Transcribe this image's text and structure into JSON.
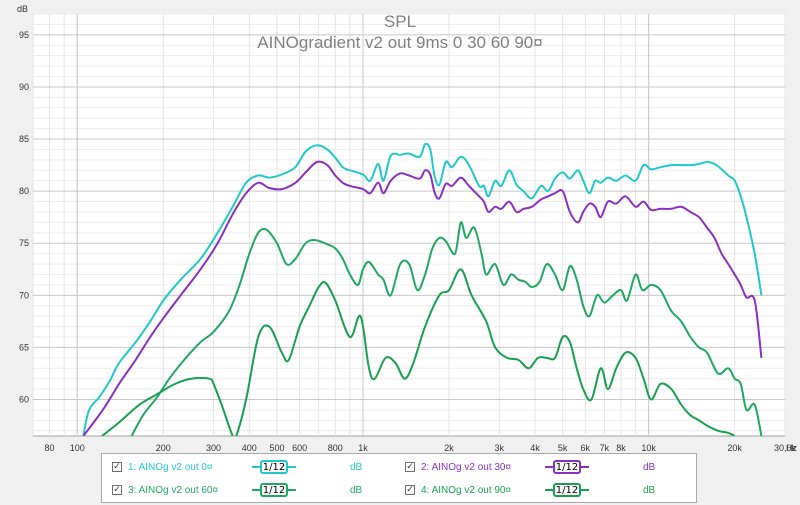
{
  "chart_data": {
    "type": "line",
    "title": "SPL",
    "subtitle": "AINOgradient v2 out 9ms 0 30 60 90¤",
    "ylabel": "dB",
    "xlabel": "",
    "x_unit": "Hz",
    "x_scale": "log",
    "xlim": [
      70,
      30000
    ],
    "ylim": [
      56.5,
      97
    ],
    "grid": true,
    "y_ticks": [
      60,
      65,
      70,
      75,
      80,
      85,
      90,
      95
    ],
    "y_tick_labels": [
      "60",
      "65",
      "70",
      "75",
      "80",
      "85",
      "90",
      "95"
    ],
    "x_ticks": [
      80,
      100,
      200,
      300,
      400,
      500,
      600,
      800,
      1000,
      2000,
      3000,
      4000,
      5000,
      6000,
      7000,
      8000,
      10000,
      20000,
      30000
    ],
    "x_tick_labels": [
      "80",
      "100",
      "200",
      "300",
      "400",
      "500",
      "600",
      "800",
      "1k",
      "2k",
      "3k",
      "4k",
      "5k",
      "6k",
      "7k",
      "8k",
      "10k",
      "20k",
      "30,0k"
    ],
    "series": [
      {
        "name": "1: AINOg v2 out 0¤",
        "color": "#20c8c8",
        "unit": "dB",
        "checked": true,
        "points": [
          [
            105,
            56.5
          ],
          [
            110,
            59.0
          ],
          [
            120,
            60.3
          ],
          [
            130,
            61.8
          ],
          [
            140,
            63.5
          ],
          [
            160,
            65.5
          ],
          [
            180,
            67.5
          ],
          [
            200,
            69.5
          ],
          [
            230,
            71.5
          ],
          [
            270,
            73.5
          ],
          [
            310,
            76.0
          ],
          [
            350,
            78.5
          ],
          [
            390,
            80.8
          ],
          [
            430,
            81.5
          ],
          [
            470,
            81.3
          ],
          [
            520,
            81.6
          ],
          [
            580,
            82.3
          ],
          [
            630,
            83.8
          ],
          [
            690,
            84.4
          ],
          [
            750,
            84.0
          ],
          [
            800,
            83.2
          ],
          [
            850,
            82.3
          ],
          [
            900,
            82.0
          ],
          [
            1000,
            81.6
          ],
          [
            1060,
            81.0
          ],
          [
            1130,
            82.6
          ],
          [
            1180,
            81.0
          ],
          [
            1250,
            83.4
          ],
          [
            1350,
            83.5
          ],
          [
            1450,
            83.6
          ],
          [
            1580,
            83.3
          ],
          [
            1650,
            84.5
          ],
          [
            1720,
            84.0
          ],
          [
            1780,
            81.5
          ],
          [
            1850,
            80.6
          ],
          [
            1950,
            82.8
          ],
          [
            2050,
            82.3
          ],
          [
            2200,
            83.3
          ],
          [
            2350,
            82.5
          ],
          [
            2550,
            80.5
          ],
          [
            2650,
            80.5
          ],
          [
            2750,
            79.5
          ],
          [
            2900,
            81.0
          ],
          [
            3050,
            80.5
          ],
          [
            3250,
            82.0
          ],
          [
            3450,
            80.6
          ],
          [
            3650,
            80.0
          ],
          [
            3900,
            79.3
          ],
          [
            4200,
            80.5
          ],
          [
            4450,
            80.0
          ],
          [
            4700,
            81.2
          ],
          [
            5000,
            81.8
          ],
          [
            5300,
            81.2
          ],
          [
            5650,
            82.0
          ],
          [
            5900,
            81.0
          ],
          [
            6200,
            79.8
          ],
          [
            6500,
            81.0
          ],
          [
            6800,
            80.8
          ],
          [
            7200,
            81.3
          ],
          [
            7700,
            81.0
          ],
          [
            8300,
            81.5
          ],
          [
            9000,
            81.0
          ],
          [
            9600,
            82.5
          ],
          [
            10200,
            82.1
          ],
          [
            11000,
            82.3
          ],
          [
            12000,
            82.5
          ],
          [
            13000,
            82.5
          ],
          [
            14000,
            82.5
          ],
          [
            15000,
            82.6
          ],
          [
            16000,
            82.8
          ],
          [
            17000,
            82.6
          ],
          [
            18000,
            82.1
          ],
          [
            19000,
            81.5
          ],
          [
            20000,
            81.0
          ],
          [
            21000,
            79.5
          ],
          [
            22000,
            77.5
          ],
          [
            23500,
            74.0
          ],
          [
            24800,
            70.0
          ]
        ]
      },
      {
        "name": "2: AINOg v2 out 30¤",
        "color": "#8a30c0",
        "unit": "dB",
        "checked": true,
        "points": [
          [
            105,
            56.5
          ],
          [
            112,
            57.5
          ],
          [
            125,
            59.3
          ],
          [
            140,
            61.5
          ],
          [
            160,
            63.8
          ],
          [
            180,
            66.0
          ],
          [
            200,
            67.8
          ],
          [
            230,
            70.0
          ],
          [
            270,
            72.5
          ],
          [
            310,
            75.0
          ],
          [
            350,
            77.8
          ],
          [
            390,
            79.8
          ],
          [
            430,
            80.8
          ],
          [
            470,
            80.3
          ],
          [
            520,
            80.2
          ],
          [
            580,
            80.8
          ],
          [
            630,
            81.8
          ],
          [
            690,
            82.8
          ],
          [
            750,
            82.5
          ],
          [
            800,
            81.5
          ],
          [
            850,
            80.8
          ],
          [
            900,
            80.5
          ],
          [
            1000,
            80.2
          ],
          [
            1060,
            79.8
          ],
          [
            1130,
            80.8
          ],
          [
            1180,
            79.8
          ],
          [
            1250,
            81.0
          ],
          [
            1350,
            81.7
          ],
          [
            1450,
            81.5
          ],
          [
            1580,
            81.2
          ],
          [
            1650,
            82.0
          ],
          [
            1720,
            81.6
          ],
          [
            1780,
            79.9
          ],
          [
            1850,
            79.3
          ],
          [
            1950,
            80.7
          ],
          [
            2050,
            80.5
          ],
          [
            2200,
            81.3
          ],
          [
            2350,
            80.5
          ],
          [
            2550,
            79.5
          ],
          [
            2650,
            79.0
          ],
          [
            2750,
            78.0
          ],
          [
            2900,
            78.5
          ],
          [
            3050,
            78.3
          ],
          [
            3250,
            79.0
          ],
          [
            3450,
            78.0
          ],
          [
            3650,
            78.3
          ],
          [
            3900,
            78.5
          ],
          [
            4200,
            79.2
          ],
          [
            4450,
            79.5
          ],
          [
            4700,
            79.8
          ],
          [
            5000,
            80.0
          ],
          [
            5300,
            78.0
          ],
          [
            5650,
            77.0
          ],
          [
            5900,
            78.0
          ],
          [
            6200,
            78.8
          ],
          [
            6500,
            78.5
          ],
          [
            6800,
            77.5
          ],
          [
            7200,
            79.0
          ],
          [
            7700,
            78.8
          ],
          [
            8300,
            79.5
          ],
          [
            9000,
            78.5
          ],
          [
            9600,
            79.0
          ],
          [
            10200,
            78.2
          ],
          [
            11000,
            78.3
          ],
          [
            12000,
            78.3
          ],
          [
            13000,
            78.5
          ],
          [
            14000,
            78.0
          ],
          [
            15000,
            77.5
          ],
          [
            16000,
            76.5
          ],
          [
            17000,
            75.5
          ],
          [
            18000,
            74.0
          ],
          [
            19000,
            73.0
          ],
          [
            20000,
            72.0
          ],
          [
            21000,
            71.0
          ],
          [
            22000,
            69.8
          ],
          [
            23500,
            69.5
          ],
          [
            24800,
            64.0
          ]
        ]
      },
      {
        "name": "3: AINOg v2 out 60¤",
        "color": "#1fa862",
        "unit": "dB",
        "checked": true,
        "points": [
          [
            155,
            56.5
          ],
          [
            170,
            58.5
          ],
          [
            190,
            60.2
          ],
          [
            210,
            62.0
          ],
          [
            240,
            64.0
          ],
          [
            270,
            65.5
          ],
          [
            300,
            66.5
          ],
          [
            340,
            68.5
          ],
          [
            370,
            71.0
          ],
          [
            400,
            74.0
          ],
          [
            430,
            76.0
          ],
          [
            460,
            76.3
          ],
          [
            500,
            75.0
          ],
          [
            540,
            73.0
          ],
          [
            580,
            73.5
          ],
          [
            630,
            75.0
          ],
          [
            680,
            75.3
          ],
          [
            750,
            74.9
          ],
          [
            800,
            74.5
          ],
          [
            850,
            73.5
          ],
          [
            900,
            72.0
          ],
          [
            960,
            71.0
          ],
          [
            1000,
            72.5
          ],
          [
            1050,
            73.2
          ],
          [
            1130,
            72.0
          ],
          [
            1180,
            71.5
          ],
          [
            1250,
            70.0
          ],
          [
            1350,
            73.0
          ],
          [
            1450,
            73.0
          ],
          [
            1550,
            70.5
          ],
          [
            1650,
            72.0
          ],
          [
            1750,
            74.5
          ],
          [
            1850,
            75.5
          ],
          [
            1950,
            75.2
          ],
          [
            2100,
            74.0
          ],
          [
            2200,
            77.0
          ],
          [
            2300,
            75.5
          ],
          [
            2450,
            76.5
          ],
          [
            2600,
            74.0
          ],
          [
            2700,
            72.0
          ],
          [
            2900,
            73.0
          ],
          [
            3100,
            71.0
          ],
          [
            3300,
            72.0
          ],
          [
            3500,
            71.5
          ],
          [
            3700,
            71.3
          ],
          [
            3900,
            70.8
          ],
          [
            4150,
            71.3
          ],
          [
            4400,
            73.0
          ],
          [
            4700,
            72.0
          ],
          [
            5000,
            70.5
          ],
          [
            5300,
            72.8
          ],
          [
            5600,
            71.5
          ],
          [
            5900,
            69.0
          ],
          [
            6200,
            68.0
          ],
          [
            6600,
            70.0
          ],
          [
            7000,
            69.3
          ],
          [
            7500,
            70.0
          ],
          [
            8000,
            70.5
          ],
          [
            8400,
            69.5
          ],
          [
            9000,
            72.0
          ],
          [
            9500,
            70.5
          ],
          [
            10200,
            71.0
          ],
          [
            11000,
            70.5
          ],
          [
            12000,
            68.5
          ],
          [
            13000,
            67.5
          ],
          [
            14000,
            66.0
          ],
          [
            15000,
            65.0
          ],
          [
            16000,
            64.5
          ],
          [
            17500,
            62.5
          ],
          [
            19000,
            63.0
          ],
          [
            20000,
            62.0
          ],
          [
            21000,
            61.5
          ],
          [
            22000,
            59.0
          ],
          [
            23500,
            59.5
          ],
          [
            24800,
            56.5
          ]
        ]
      },
      {
        "name": "4: AINOg v2 out 90¤",
        "color": "#18a050",
        "unit": "dB",
        "checked": true,
        "points": [
          [
            122,
            56.5
          ],
          [
            140,
            57.8
          ],
          [
            165,
            59.5
          ],
          [
            190,
            60.5
          ],
          [
            220,
            61.5
          ],
          [
            250,
            62.0
          ],
          [
            290,
            62.0
          ],
          [
            300,
            61.5
          ],
          [
            320,
            59.5
          ],
          [
            350,
            56.5
          ],
          [
            360,
            56.5
          ],
          [
            390,
            60.0
          ],
          [
            430,
            66.0
          ],
          [
            470,
            67.0
          ],
          [
            520,
            64.5
          ],
          [
            550,
            63.8
          ],
          [
            600,
            67.0
          ],
          [
            650,
            69.0
          ],
          [
            700,
            70.8
          ],
          [
            740,
            71.2
          ],
          [
            800,
            69.5
          ],
          [
            900,
            66.0
          ],
          [
            980,
            68.0
          ],
          [
            1050,
            63.0
          ],
          [
            1100,
            62.0
          ],
          [
            1200,
            64.0
          ],
          [
            1300,
            63.5
          ],
          [
            1400,
            62.0
          ],
          [
            1500,
            63.5
          ],
          [
            1650,
            67.0
          ],
          [
            1850,
            70.0
          ],
          [
            2000,
            70.5
          ],
          [
            2200,
            72.5
          ],
          [
            2400,
            70.0
          ],
          [
            2700,
            67.5
          ],
          [
            2900,
            65.0
          ],
          [
            3200,
            64.0
          ],
          [
            3500,
            63.8
          ],
          [
            3800,
            63.0
          ],
          [
            4100,
            64.0
          ],
          [
            4400,
            64.0
          ],
          [
            4700,
            64.0
          ],
          [
            5000,
            66.0
          ],
          [
            5300,
            65.5
          ],
          [
            5600,
            63.0
          ],
          [
            5900,
            61.0
          ],
          [
            6300,
            60.0
          ],
          [
            6800,
            63.0
          ],
          [
            7200,
            61.0
          ],
          [
            7700,
            63.0
          ],
          [
            8300,
            64.5
          ],
          [
            9000,
            64.0
          ],
          [
            9600,
            62.0
          ],
          [
            10200,
            60.0
          ],
          [
            11000,
            61.5
          ],
          [
            12000,
            61.0
          ],
          [
            13000,
            59.5
          ],
          [
            14000,
            58.5
          ],
          [
            15000,
            58.0
          ],
          [
            16000,
            57.5
          ],
          [
            17500,
            57.0
          ],
          [
            19000,
            56.8
          ],
          [
            20000,
            56.5
          ]
        ]
      }
    ]
  },
  "legend": {
    "items": [
      {
        "label": "1: AINOg v2 out 0¤",
        "smoothing": "1/12",
        "unit": "dB",
        "color": "#20c8c8",
        "checked": true
      },
      {
        "label": "2: AINOg v2 out 30¤",
        "smoothing": "1/12",
        "unit": "dB",
        "color": "#8a30c0",
        "checked": true
      },
      {
        "label": "3: AINOg v2 out 60¤",
        "smoothing": "1/12",
        "unit": "dB",
        "color": "#1fa862",
        "checked": true
      },
      {
        "label": "4: AINOg v2 out 90¤",
        "smoothing": "1/12",
        "unit": "dB",
        "color": "#18a050",
        "checked": true
      }
    ]
  }
}
